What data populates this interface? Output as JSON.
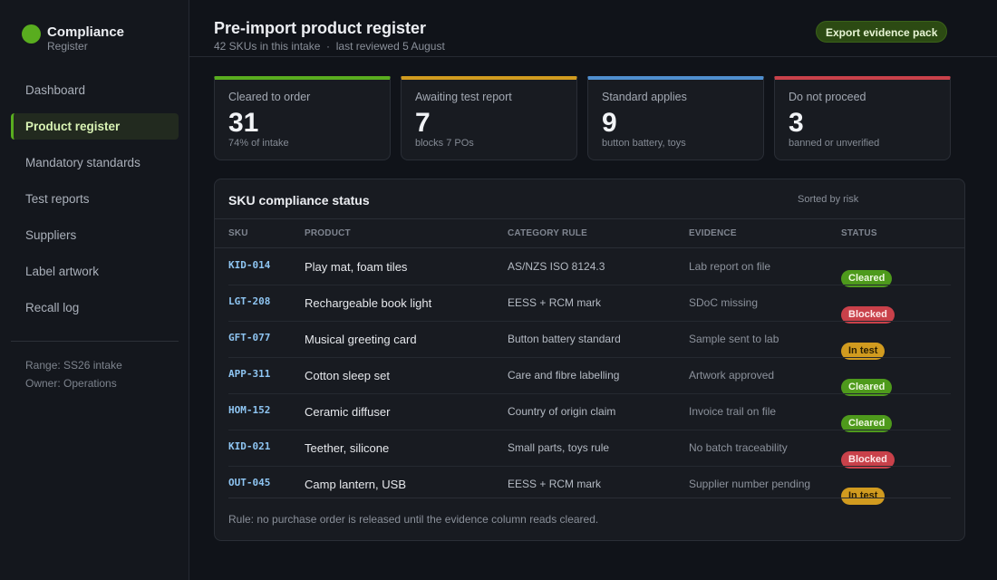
{
  "brand": {
    "name": "Compliance",
    "sub": "Register",
    "color": "#59ad1f"
  },
  "nav": [
    {
      "label": "Dashboard",
      "active": false
    },
    {
      "label": "Product register",
      "active": true
    },
    {
      "label": "Mandatory standards",
      "active": false
    },
    {
      "label": "Test reports",
      "active": false
    },
    {
      "label": "Suppliers",
      "active": false
    },
    {
      "label": "Label artwork",
      "active": false
    },
    {
      "label": "Recall log",
      "active": false
    }
  ],
  "sidebar_meta": {
    "range": "Range: SS26 intake",
    "owner": "Owner: Operations"
  },
  "header": {
    "title": "Pre-import product register",
    "subtitle": "42 SKUs in this intake  ·  last reviewed 5 August",
    "export_label": "Export evidence pack"
  },
  "kpis": [
    {
      "label": "Cleared to order",
      "value": "31",
      "note": "74% of intake",
      "color": "#59ad1f"
    },
    {
      "label": "Awaiting test report",
      "value": "7",
      "note": "blocks 7 POs",
      "color": "#d19b1f"
    },
    {
      "label": "Standard applies",
      "value": "9",
      "note": "button battery, toys",
      "color": "#4f8fcf"
    },
    {
      "label": "Do not proceed",
      "value": "3",
      "note": "banned or unverified",
      "color": "#c9414a"
    }
  ],
  "table": {
    "title": "SKU compliance status",
    "sort_label": "Sorted by risk",
    "columns": [
      "SKU",
      "PRODUCT",
      "CATEGORY RULE",
      "EVIDENCE",
      "STATUS"
    ],
    "rows": [
      {
        "sku": "KID-014",
        "product": "Play mat, foam tiles",
        "rule": "AS/NZS ISO 8124.3",
        "evidence": "Lab report on file",
        "status": "Cleared",
        "kind": "cleared"
      },
      {
        "sku": "LGT-208",
        "product": "Rechargeable book light",
        "rule": "EESS + RCM mark",
        "evidence": "SDoC missing",
        "status": "Blocked",
        "kind": "blocked"
      },
      {
        "sku": "GFT-077",
        "product": "Musical greeting card",
        "rule": "Button battery standard",
        "evidence": "Sample sent to lab",
        "status": "In test",
        "kind": "intest"
      },
      {
        "sku": "APP-311",
        "product": "Cotton sleep set",
        "rule": "Care and fibre labelling",
        "evidence": "Artwork approved",
        "status": "Cleared",
        "kind": "cleared"
      },
      {
        "sku": "HOM-152",
        "product": "Ceramic diffuser",
        "rule": "Country of origin claim",
        "evidence": "Invoice trail on file",
        "status": "Cleared",
        "kind": "cleared"
      },
      {
        "sku": "KID-021",
        "product": "Teether, silicone",
        "rule": "Small parts, toys rule",
        "evidence": "No batch traceability",
        "status": "Blocked",
        "kind": "blocked"
      },
      {
        "sku": "OUT-045",
        "product": "Camp lantern, USB",
        "rule": "EESS + RCM mark",
        "evidence": "Supplier number pending",
        "status": "In test",
        "kind": "intest"
      }
    ],
    "footer": "Rule: no purchase order is released until the evidence column reads cleared."
  }
}
